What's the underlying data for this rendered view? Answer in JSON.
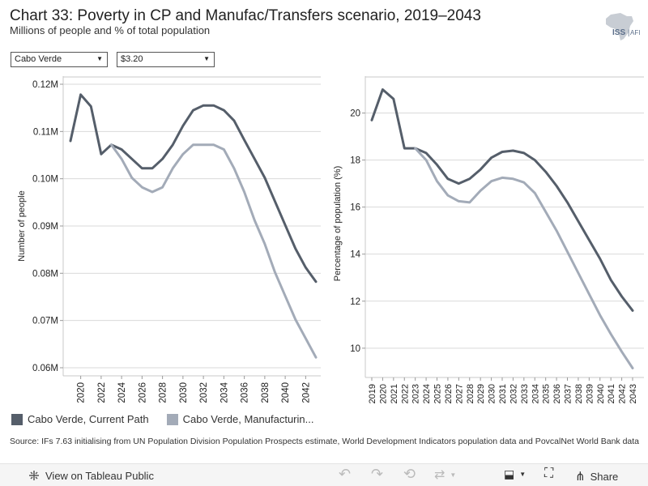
{
  "title": "Chart 33: Poverty in CP and Manufac/Transfers scenario, 2019–2043",
  "subtitle": "Millions of people and % of total population",
  "logo": {
    "text": "ISS",
    "suffix": "AFI"
  },
  "filters": {
    "country": "Cabo Verde",
    "poverty_line": "$3.20"
  },
  "legend": {
    "series1": "Cabo Verde, Current Path",
    "series2": "Cabo Verde, Manufacturin..."
  },
  "source": "Source: IFs 7.63 initialising from UN Population Division Population Prospects estimate, World Development Indicators population data and PovcalNet World Bank data",
  "toolbar": {
    "view_label": "View on Tableau Public",
    "share_label": "Share"
  },
  "colors": {
    "current_path": "#555e6a",
    "manufacturing": "#a3abb8",
    "grid": "#d9d9d9"
  },
  "chart_data": [
    {
      "type": "line",
      "title": "",
      "xlabel": "",
      "ylabel": "Number of people",
      "ylim": [
        0.06,
        0.12
      ],
      "yticks": [
        0.06,
        0.07,
        0.08,
        0.09,
        0.1,
        0.11,
        0.12
      ],
      "ytick_labels": [
        "0.06M",
        "0.07M",
        "0.08M",
        "0.09M",
        "0.10M",
        "0.11M",
        "0.12M"
      ],
      "xticks": [
        2020,
        2022,
        2024,
        2026,
        2028,
        2030,
        2032,
        2034,
        2036,
        2038,
        2040,
        2042
      ],
      "x": [
        2019,
        2020,
        2021,
        2022,
        2023,
        2024,
        2025,
        2026,
        2027,
        2028,
        2029,
        2030,
        2031,
        2032,
        2033,
        2034,
        2035,
        2036,
        2037,
        2038,
        2039,
        2040,
        2041,
        2042,
        2043
      ],
      "series": [
        {
          "name": "Cabo Verde, Current Path",
          "values": [
            0.108,
            0.1178,
            0.1153,
            0.1052,
            0.1072,
            0.1062,
            0.1042,
            0.1022,
            0.1022,
            0.1042,
            0.1072,
            0.1112,
            0.1145,
            0.1155,
            0.1155,
            0.1145,
            0.1123,
            0.1082,
            0.1042,
            0.1002,
            0.0952,
            0.0902,
            0.0852,
            0.0812,
            0.0782
          ]
        },
        {
          "name": "Cabo Verde, Manufacturing/Transfers",
          "values": [
            null,
            null,
            null,
            null,
            0.1072,
            0.1042,
            0.1002,
            0.0982,
            0.0972,
            0.0982,
            0.1022,
            0.1052,
            0.1072,
            0.1072,
            0.1072,
            0.1062,
            0.1022,
            0.0972,
            0.0912,
            0.0862,
            0.0802,
            0.0752,
            0.0702,
            0.0662,
            0.0622
          ]
        }
      ]
    },
    {
      "type": "line",
      "title": "",
      "xlabel": "",
      "ylabel": "Percentage of population (%)",
      "ylim": [
        9.1,
        21.5
      ],
      "yticks": [
        10,
        12,
        14,
        16,
        18,
        20
      ],
      "ytick_labels": [
        "10",
        "12",
        "14",
        "16",
        "18",
        "20"
      ],
      "xticks": [
        2019,
        2020,
        2021,
        2022,
        2023,
        2024,
        2025,
        2026,
        2027,
        2028,
        2029,
        2030,
        2031,
        2032,
        2033,
        2034,
        2035,
        2036,
        2037,
        2038,
        2039,
        2040,
        2041,
        2042,
        2043
      ],
      "x": [
        2019,
        2020,
        2021,
        2022,
        2023,
        2024,
        2025,
        2026,
        2027,
        2028,
        2029,
        2030,
        2031,
        2032,
        2033,
        2034,
        2035,
        2036,
        2037,
        2038,
        2039,
        2040,
        2041,
        2042,
        2043
      ],
      "series": [
        {
          "name": "Cabo Verde, Current Path",
          "values": [
            19.7,
            21.0,
            20.6,
            18.5,
            18.5,
            18.3,
            17.8,
            17.2,
            17.0,
            17.2,
            17.6,
            18.1,
            18.35,
            18.4,
            18.3,
            18.0,
            17.5,
            16.9,
            16.2,
            15.4,
            14.6,
            13.8,
            12.9,
            12.2,
            11.6
          ]
        },
        {
          "name": "Cabo Verde, Manufacturing/Transfers",
          "values": [
            null,
            null,
            null,
            null,
            18.5,
            18.0,
            17.1,
            16.5,
            16.25,
            16.2,
            16.7,
            17.1,
            17.25,
            17.2,
            17.05,
            16.6,
            15.8,
            15.0,
            14.1,
            13.2,
            12.3,
            11.4,
            10.6,
            9.85,
            9.15
          ]
        }
      ]
    }
  ]
}
